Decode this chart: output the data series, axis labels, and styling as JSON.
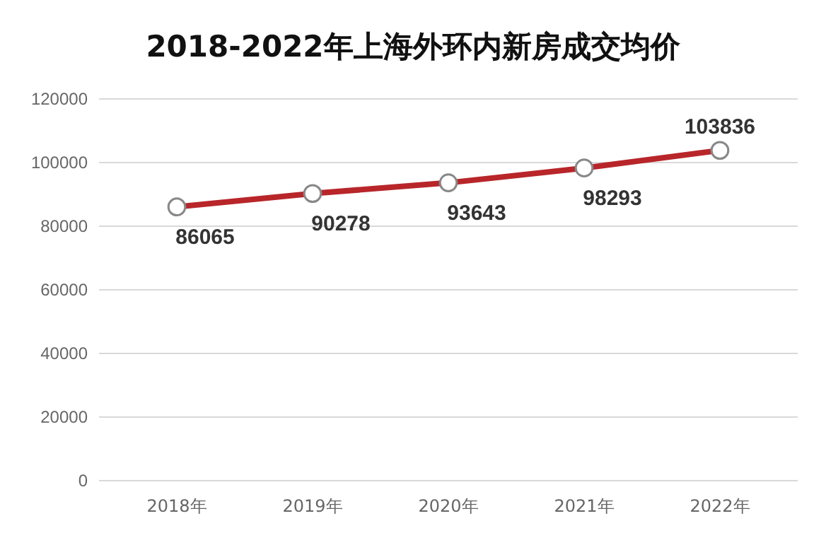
{
  "chart_data": {
    "type": "line",
    "title": "2018-2022年上海外环内新房成交均价",
    "categories": [
      "2018年",
      "2019年",
      "2020年",
      "2021年",
      "2022年"
    ],
    "series": [
      {
        "color": "#b8262a",
        "values": [
          86065,
          90278,
          93643,
          98293,
          103836
        ]
      }
    ],
    "ylim": [
      0,
      120000
    ],
    "yticks": [
      0,
      20000,
      40000,
      60000,
      80000,
      100000,
      120000
    ],
    "grid": "y",
    "marker": "circle",
    "data_labels": true
  }
}
